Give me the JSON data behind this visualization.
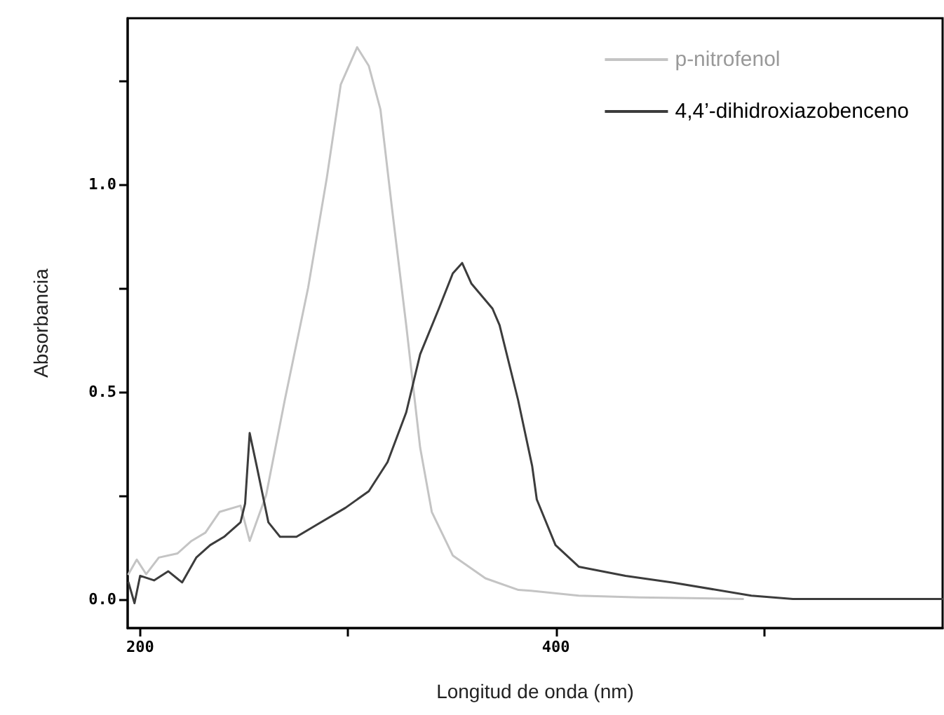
{
  "chart_data": {
    "type": "line",
    "xlabel": "Longitud de onda (nm)",
    "ylabel": "Absorbancia",
    "xlim": [
      194,
      586
    ],
    "ylim": [
      -0.07,
      1.4
    ],
    "xticks": [
      200,
      {
        "value": 300,
        "label": null
      },
      400,
      {
        "value": 500,
        "label": null
      }
    ],
    "yticks": [
      {
        "value": 0,
        "label": "0.0"
      },
      {
        "value": 0.25,
        "label": null
      },
      {
        "value": 0.5,
        "label": "0.5"
      },
      {
        "value": 0.75,
        "label": null
      },
      {
        "value": 1.0,
        "label": "1.0"
      },
      {
        "value": 1.25,
        "label": null
      }
    ],
    "grid": false,
    "legend": "top right",
    "marker": "none",
    "line_style": "solid",
    "series": [
      {
        "name": "p-nitrofenol",
        "color": "#c4c4c4",
        "x": [
          194.4,
          198.4,
          202.9,
          209,
          218,
          224.7,
          231.4,
          238.2,
          248.3,
          252.7,
          260.6,
          269.6,
          280.8,
          289.8,
          296.5,
          304.4,
          310,
          315.6,
          321.2,
          328,
          334.7,
          340.3,
          350.4,
          366.1,
          382,
          388,
          411,
          440,
          470,
          490
        ],
        "values": [
          0.06,
          0.095,
          0.06,
          0.1,
          0.11,
          0.14,
          0.16,
          0.21,
          0.225,
          0.14,
          0.25,
          0.48,
          0.75,
          1.015,
          1.24,
          1.33,
          1.285,
          1.18,
          0.94,
          0.66,
          0.365,
          0.21,
          0.105,
          0.05,
          0.022,
          0.02,
          0.008,
          0.004,
          0.002,
          0
        ]
      },
      {
        "name": "4,4’-dihidroxiazobenceno",
        "color": "#3c3c3c",
        "x": [
          194.4,
          197.3,
          200,
          206.7,
          213.5,
          220.2,
          227,
          233.7,
          240.4,
          248.3,
          250.5,
          252.7,
          256.1,
          261.7,
          267.3,
          275.2,
          285.3,
          298.8,
          310,
          319,
          328,
          334.7,
          343.7,
          350.4,
          354.9,
          359.4,
          369.5,
          372.9,
          381.8,
          388.6,
          390.8,
          399.8,
          411,
          433.5,
          456,
          494,
          514,
          586
        ],
        "values": [
          0.04,
          -0.01,
          0.056,
          0.045,
          0.067,
          0.04,
          0.1,
          0.13,
          0.15,
          0.185,
          0.23,
          0.4,
          0.32,
          0.185,
          0.15,
          0.15,
          0.18,
          0.22,
          0.26,
          0.33,
          0.45,
          0.59,
          0.7,
          0.785,
          0.81,
          0.76,
          0.7,
          0.66,
          0.48,
          0.32,
          0.24,
          0.13,
          0.078,
          0.056,
          0.04,
          0.008,
          0,
          0
        ]
      }
    ]
  }
}
